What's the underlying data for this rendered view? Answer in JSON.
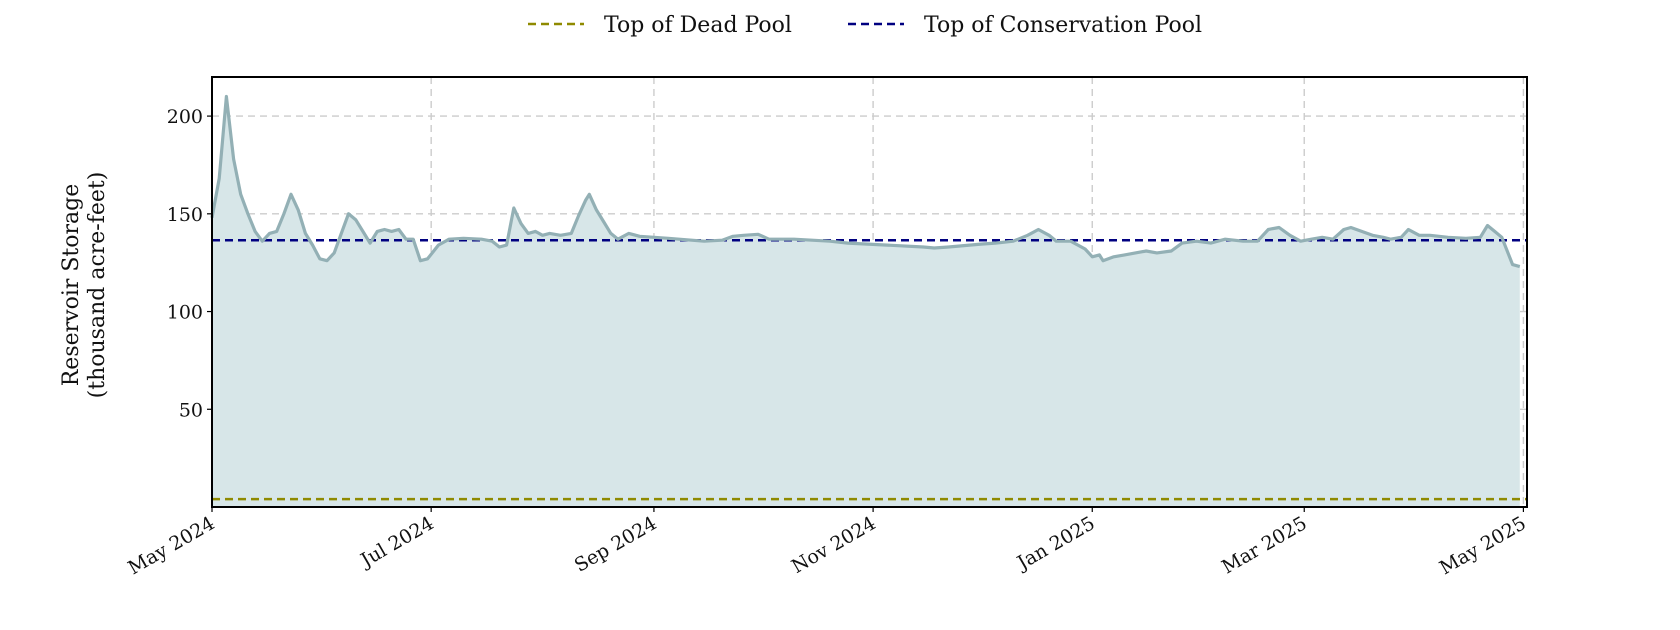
{
  "chart_data": {
    "type": "area",
    "title": "",
    "xlabel": "",
    "ylabel": [
      "Reservoir Storage",
      "(thousand acre-feet)"
    ],
    "xlim": [
      "2024-05-01",
      "2025-05-02"
    ],
    "ylim": [
      0,
      220
    ],
    "grid": true,
    "legend": "top-center",
    "x_ticks": [
      "May 2024",
      "Jul 2024",
      "Sep 2024",
      "Nov 2024",
      "Jan 2025",
      "Mar 2025",
      "May 2025"
    ],
    "x_tick_dates": [
      "2024-05-01",
      "2024-07-01",
      "2024-09-01",
      "2024-11-01",
      "2025-01-01",
      "2025-03-01",
      "2025-05-01"
    ],
    "y_ticks": [
      50,
      100,
      150,
      200
    ],
    "colors": {
      "storage_line": "#93b0b5",
      "storage_fill": "#d7e6e8",
      "dead_pool": "#8f8a00",
      "conservation_pool": "#000080",
      "grid": "#cccccc"
    },
    "reference_lines": [
      {
        "name": "Top of Dead Pool",
        "value": 4,
        "color": "#8f8a00"
      },
      {
        "name": "Top of Conservation Pool",
        "value": 136.5,
        "color": "#000080"
      }
    ],
    "series": [
      {
        "values": [
          {
            "x": "2024-05-01",
            "y": 148
          },
          {
            "x": "2024-05-03",
            "y": 168
          },
          {
            "x": "2024-05-05",
            "y": 210
          },
          {
            "x": "2024-05-07",
            "y": 178
          },
          {
            "x": "2024-05-09",
            "y": 160
          },
          {
            "x": "2024-05-11",
            "y": 150
          },
          {
            "x": "2024-05-13",
            "y": 141
          },
          {
            "x": "2024-05-15",
            "y": 136
          },
          {
            "x": "2024-05-17",
            "y": 140
          },
          {
            "x": "2024-05-19",
            "y": 141
          },
          {
            "x": "2024-05-21",
            "y": 150
          },
          {
            "x": "2024-05-23",
            "y": 160
          },
          {
            "x": "2024-05-25",
            "y": 152
          },
          {
            "x": "2024-05-27",
            "y": 140
          },
          {
            "x": "2024-05-29",
            "y": 134
          },
          {
            "x": "2024-05-31",
            "y": 127
          },
          {
            "x": "2024-06-02",
            "y": 126
          },
          {
            "x": "2024-06-04",
            "y": 130
          },
          {
            "x": "2024-06-06",
            "y": 140
          },
          {
            "x": "2024-06-08",
            "y": 150
          },
          {
            "x": "2024-06-10",
            "y": 147
          },
          {
            "x": "2024-06-12",
            "y": 141
          },
          {
            "x": "2024-06-14",
            "y": 135
          },
          {
            "x": "2024-06-16",
            "y": 141
          },
          {
            "x": "2024-06-18",
            "y": 142
          },
          {
            "x": "2024-06-20",
            "y": 141
          },
          {
            "x": "2024-06-22",
            "y": 142
          },
          {
            "x": "2024-06-24",
            "y": 137
          },
          {
            "x": "2024-06-26",
            "y": 137
          },
          {
            "x": "2024-06-28",
            "y": 126
          },
          {
            "x": "2024-06-30",
            "y": 127
          },
          {
            "x": "2024-07-03",
            "y": 134
          },
          {
            "x": "2024-07-06",
            "y": 137
          },
          {
            "x": "2024-07-10",
            "y": 137.5
          },
          {
            "x": "2024-07-15",
            "y": 137
          },
          {
            "x": "2024-07-18",
            "y": 136
          },
          {
            "x": "2024-07-20",
            "y": 133
          },
          {
            "x": "2024-07-22",
            "y": 134
          },
          {
            "x": "2024-07-24",
            "y": 153
          },
          {
            "x": "2024-07-26",
            "y": 145
          },
          {
            "x": "2024-07-28",
            "y": 140
          },
          {
            "x": "2024-07-30",
            "y": 141
          },
          {
            "x": "2024-08-01",
            "y": 139
          },
          {
            "x": "2024-08-03",
            "y": 140
          },
          {
            "x": "2024-08-06",
            "y": 139
          },
          {
            "x": "2024-08-09",
            "y": 140
          },
          {
            "x": "2024-08-11",
            "y": 149
          },
          {
            "x": "2024-08-13",
            "y": 157
          },
          {
            "x": "2024-08-14",
            "y": 160
          },
          {
            "x": "2024-08-16",
            "y": 152
          },
          {
            "x": "2024-08-18",
            "y": 146
          },
          {
            "x": "2024-08-20",
            "y": 140
          },
          {
            "x": "2024-08-22",
            "y": 137
          },
          {
            "x": "2024-08-25",
            "y": 140
          },
          {
            "x": "2024-08-28",
            "y": 138.5
          },
          {
            "x": "2024-09-05",
            "y": 137.5
          },
          {
            "x": "2024-09-15",
            "y": 136
          },
          {
            "x": "2024-09-20",
            "y": 136.5
          },
          {
            "x": "2024-09-23",
            "y": 138.5
          },
          {
            "x": "2024-09-26",
            "y": 139
          },
          {
            "x": "2024-09-30",
            "y": 139.5
          },
          {
            "x": "2024-10-03",
            "y": 137
          },
          {
            "x": "2024-10-10",
            "y": 137
          },
          {
            "x": "2024-10-20",
            "y": 136
          },
          {
            "x": "2024-10-25",
            "y": 135
          },
          {
            "x": "2024-11-05",
            "y": 134
          },
          {
            "x": "2024-11-15",
            "y": 133
          },
          {
            "x": "2024-11-18",
            "y": 132.5
          },
          {
            "x": "2024-11-22",
            "y": 133
          },
          {
            "x": "2024-12-01",
            "y": 134.5
          },
          {
            "x": "2024-12-05",
            "y": 135
          },
          {
            "x": "2024-12-10",
            "y": 136
          },
          {
            "x": "2024-12-14",
            "y": 139
          },
          {
            "x": "2024-12-17",
            "y": 142
          },
          {
            "x": "2024-12-20",
            "y": 139
          },
          {
            "x": "2024-12-22",
            "y": 136
          },
          {
            "x": "2024-12-26",
            "y": 136
          },
          {
            "x": "2024-12-30",
            "y": 132
          },
          {
            "x": "2025-01-01",
            "y": 128
          },
          {
            "x": "2025-01-03",
            "y": 129
          },
          {
            "x": "2025-01-04",
            "y": 126
          },
          {
            "x": "2025-01-07",
            "y": 128
          },
          {
            "x": "2025-01-10",
            "y": 129
          },
          {
            "x": "2025-01-13",
            "y": 130
          },
          {
            "x": "2025-01-16",
            "y": 131
          },
          {
            "x": "2025-01-19",
            "y": 130
          },
          {
            "x": "2025-01-23",
            "y": 131
          },
          {
            "x": "2025-01-26",
            "y": 135
          },
          {
            "x": "2025-01-30",
            "y": 136
          },
          {
            "x": "2025-02-03",
            "y": 135
          },
          {
            "x": "2025-02-07",
            "y": 137
          },
          {
            "x": "2025-02-12",
            "y": 136
          },
          {
            "x": "2025-02-16",
            "y": 136
          },
          {
            "x": "2025-02-19",
            "y": 142
          },
          {
            "x": "2025-02-22",
            "y": 143
          },
          {
            "x": "2025-02-25",
            "y": 139
          },
          {
            "x": "2025-02-28",
            "y": 136
          },
          {
            "x": "2025-03-03",
            "y": 137
          },
          {
            "x": "2025-03-06",
            "y": 138
          },
          {
            "x": "2025-03-09",
            "y": 137
          },
          {
            "x": "2025-03-12",
            "y": 142
          },
          {
            "x": "2025-03-14",
            "y": 143
          },
          {
            "x": "2025-03-17",
            "y": 141
          },
          {
            "x": "2025-03-20",
            "y": 139
          },
          {
            "x": "2025-03-23",
            "y": 138
          },
          {
            "x": "2025-03-25",
            "y": 137
          },
          {
            "x": "2025-03-28",
            "y": 138
          },
          {
            "x": "2025-03-30",
            "y": 142
          },
          {
            "x": "2025-04-02",
            "y": 139
          },
          {
            "x": "2025-04-05",
            "y": 139
          },
          {
            "x": "2025-04-10",
            "y": 138
          },
          {
            "x": "2025-04-15",
            "y": 137.5
          },
          {
            "x": "2025-04-19",
            "y": 138
          },
          {
            "x": "2025-04-21",
            "y": 144
          },
          {
            "x": "2025-04-23",
            "y": 141
          },
          {
            "x": "2025-04-25",
            "y": 138
          },
          {
            "x": "2025-04-28",
            "y": 124
          },
          {
            "x": "2025-04-30",
            "y": 123
          }
        ]
      }
    ]
  }
}
